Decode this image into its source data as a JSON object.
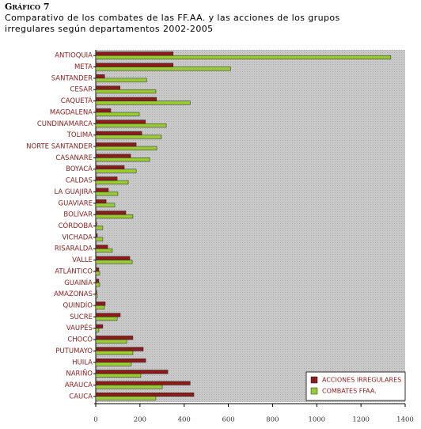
{
  "chart_data": {
    "type": "hbar",
    "title": "Gráfico 7",
    "subtitle": [
      "Comparativo de los combates de las FF.AA. y las acciones de los grupos",
      "irregulares según departamentos 2002-2005"
    ],
    "categories": [
      "ANTIOQUIA",
      "META",
      "SANTANDER",
      "CESAR",
      "CAQUETÁ",
      "MAGDALENA",
      "CUNDINAMARCA",
      "TOLIMA",
      "NORTE SANTANDER",
      "CASANARE",
      "BOYACÁ",
      "CALDAS",
      "LA GUAJIRA",
      "GUAVIARE",
      "BOLÍVAR",
      "CÓRDOBA",
      "VICHADA",
      "RISARALDA",
      "VALLE",
      "ATLÁNTICO",
      "GUAINÍA",
      "AMAZONAS",
      "QUINDÍO",
      "SUCRE",
      "VAUPÉS",
      "CHOCÓ",
      "PUTUMAYO",
      "HUILA",
      "NARIÑO",
      "ARAUCA",
      "CAUCA"
    ],
    "series": [
      {
        "name": "ACCIONES IRREGULARES",
        "color": "#8b1c1c",
        "values": [
          350,
          350,
          40,
          110,
          275,
          68,
          225,
          208,
          183,
          158,
          129,
          97,
          57,
          47,
          136,
          4,
          7,
          54,
          154,
          14,
          14,
          4,
          43,
          111,
          32,
          168,
          215,
          226,
          326,
          427,
          444
        ]
      },
      {
        "name": "COMBATES FFAA.",
        "color": "#99cc33",
        "values": [
          1335,
          610,
          230,
          272,
          427,
          197,
          319,
          297,
          276,
          244,
          183,
          147,
          100,
          86,
          168,
          32,
          32,
          75,
          165,
          18,
          18,
          7,
          39,
          97,
          14,
          140,
          168,
          161,
          204,
          301,
          272
        ]
      }
    ],
    "xlim": [
      0,
      1400
    ],
    "xticks": [
      0,
      200,
      400,
      600,
      800,
      1000,
      1200,
      1400
    ],
    "legend": "bottom-right"
  }
}
